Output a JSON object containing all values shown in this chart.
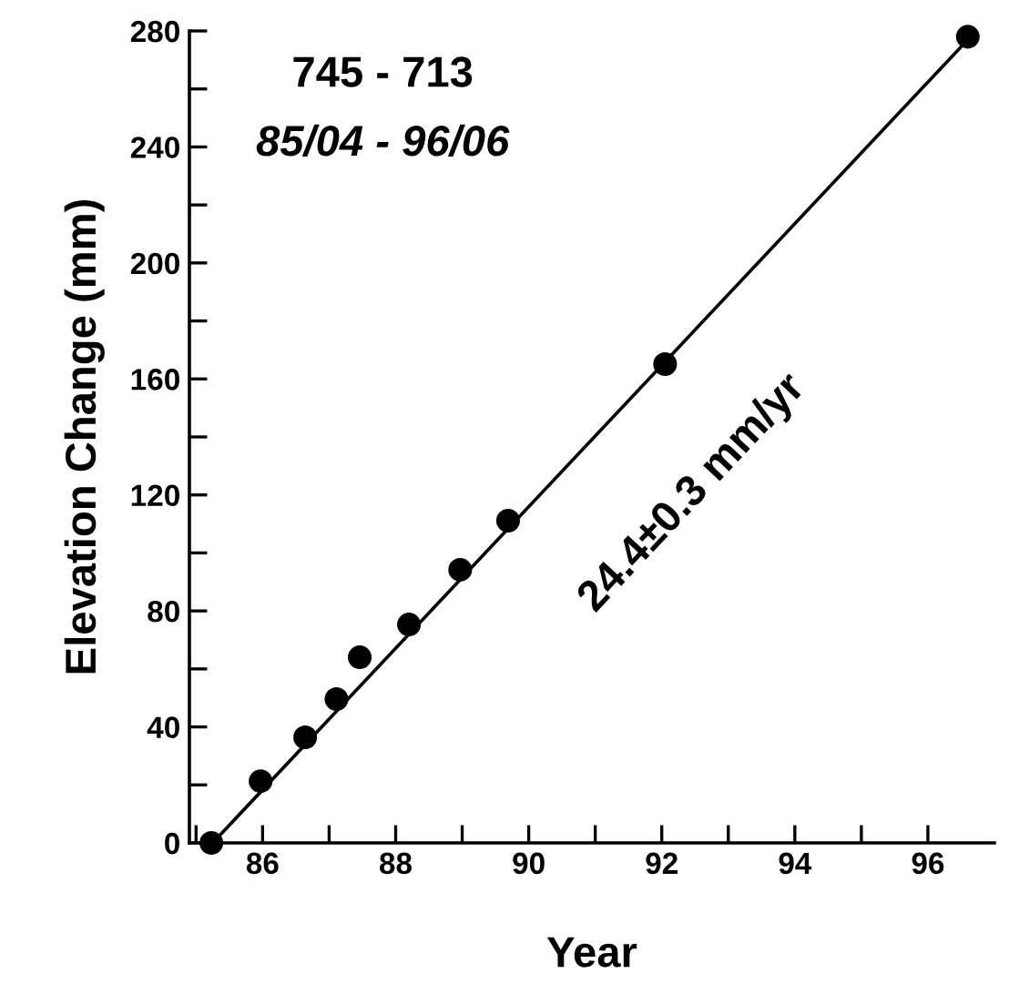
{
  "chart_data": {
    "type": "scatter",
    "xlabel": "Year",
    "ylabel": "Elevation Change (mm)",
    "series": [
      {
        "color": "#000000",
        "marker": "circle",
        "x": [
          85.23,
          85.97,
          86.64,
          87.11,
          87.46,
          88.2,
          88.97,
          89.69,
          92.05,
          96.6
        ],
        "values": [
          0,
          21.3,
          36.4,
          49.6,
          64.0,
          75.3,
          94.2,
          111.1,
          165.1,
          278
        ]
      },
      {
        "type": "line",
        "color": "#000000",
        "marker": "none",
        "line_style": "solid",
        "x": [
          85.25,
          96.6
        ],
        "values": [
          0,
          277
        ]
      }
    ],
    "xlim": [
      84.9,
      97
    ],
    "ylim": [
      0,
      280
    ],
    "xticks": [
      {
        "value": 85,
        "label": null
      },
      86,
      {
        "value": 87,
        "label": null
      },
      88,
      {
        "value": 89,
        "label": null
      },
      90,
      {
        "value": 91,
        "label": null
      },
      92,
      {
        "value": 93,
        "label": null
      },
      94,
      {
        "value": 95,
        "label": null
      },
      96
    ],
    "yticks": [
      0,
      {
        "value": 20,
        "label": null
      },
      40,
      {
        "value": 60,
        "label": null
      },
      80,
      {
        "value": 100,
        "label": null
      },
      120,
      {
        "value": 140,
        "label": null
      },
      160,
      {
        "value": 180,
        "label": null
      },
      200,
      {
        "value": 220,
        "label": null
      },
      240,
      {
        "value": 260,
        "label": null
      },
      280
    ],
    "grid": false,
    "legend": false,
    "annotations": [
      "745 - 713",
      "85/04 - 96/06",
      "24.4±0.3 mm/yr"
    ]
  }
}
